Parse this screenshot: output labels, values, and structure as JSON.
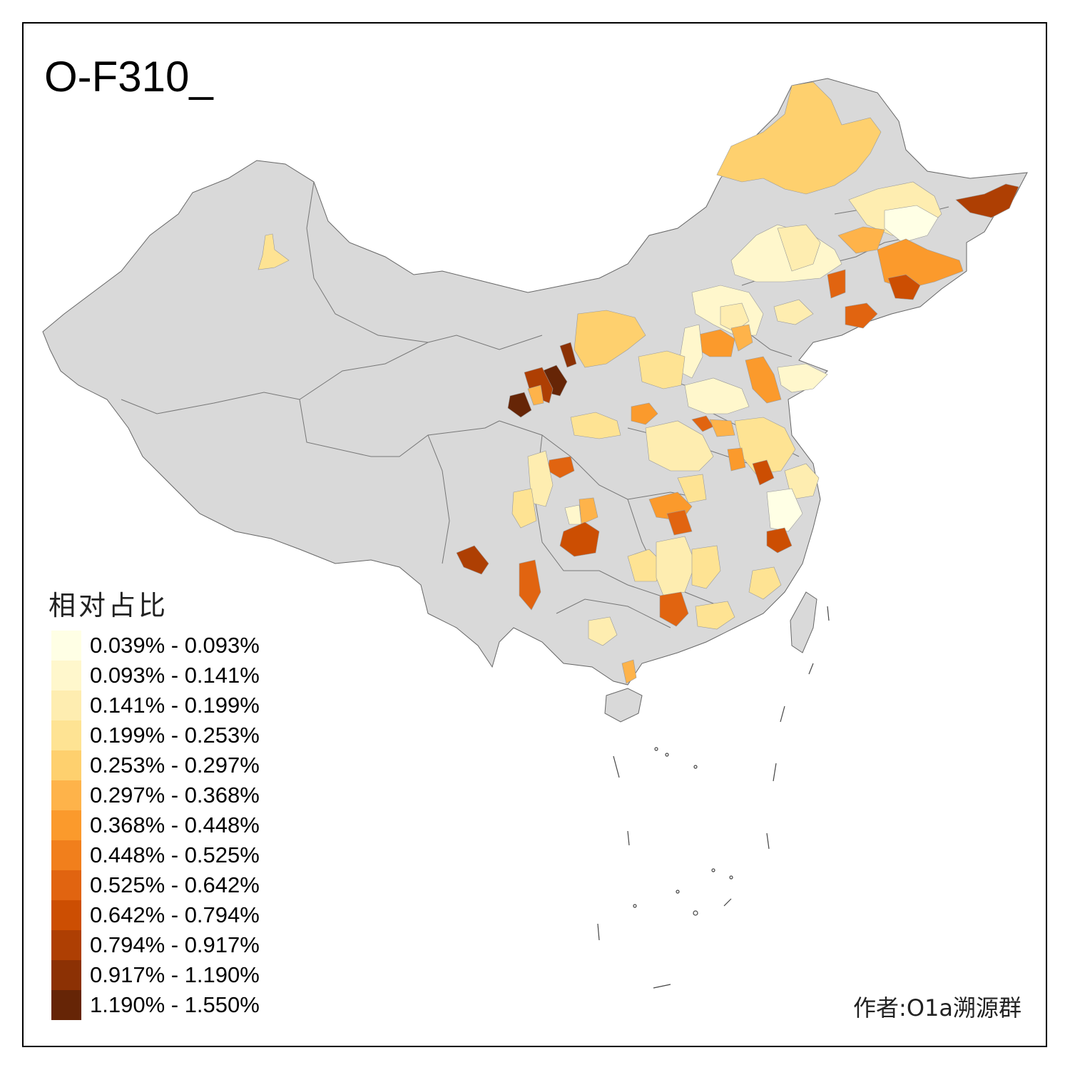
{
  "title": "O-F310_",
  "legend": {
    "title": "相对占比",
    "items": [
      {
        "label": "0.039% - 0.093%",
        "color": "#FFFFE5"
      },
      {
        "label": "0.093% - 0.141%",
        "color": "#FFF7CC"
      },
      {
        "label": "0.141% - 0.199%",
        "color": "#FEEDB0"
      },
      {
        "label": "0.199% - 0.253%",
        "color": "#FEE393"
      },
      {
        "label": "0.253% - 0.297%",
        "color": "#FED06E"
      },
      {
        "label": "0.297% - 0.368%",
        "color": "#FEB34A"
      },
      {
        "label": "0.368% - 0.448%",
        "color": "#FB9A2C"
      },
      {
        "label": "0.448% - 0.525%",
        "color": "#F17F1C"
      },
      {
        "label": "0.525% - 0.642%",
        "color": "#E16410"
      },
      {
        "label": "0.642% - 0.794%",
        "color": "#CC4E02"
      },
      {
        "label": "0.794% - 0.917%",
        "color": "#AE3F03"
      },
      {
        "label": "0.917% - 1.190%",
        "color": "#8C3104"
      },
      {
        "label": "1.190% - 1.550%",
        "color": "#662506"
      }
    ]
  },
  "no_data_color": "#D9D9D9",
  "credit": "作者:O1a溯源群"
}
